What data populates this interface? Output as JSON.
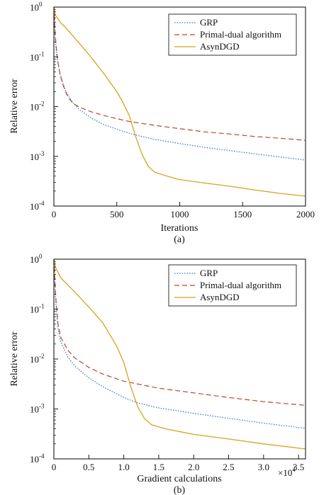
{
  "chart_data": [
    {
      "type": "line",
      "panel_label": "(a)",
      "xlabel": "Iterations",
      "ylabel": "Relative error",
      "xlim": [
        0,
        2000
      ],
      "ylim": [
        0.0001,
        1
      ],
      "yscale": "log",
      "x_ticks": [
        0,
        500,
        1000,
        1500,
        2000
      ],
      "x_tick_labels": [
        "0",
        "500",
        "1000",
        "1500",
        "2000"
      ],
      "x_multiplier": "",
      "y_tick_labels": [
        {
          "value": 1,
          "base": "10",
          "exp": "0"
        },
        {
          "value": 0.1,
          "base": "10",
          "exp": "-1"
        },
        {
          "value": 0.01,
          "base": "10",
          "exp": "-2"
        },
        {
          "value": 0.001,
          "base": "10",
          "exp": "-3"
        },
        {
          "value": 0.0001,
          "base": "10",
          "exp": "-4"
        }
      ],
      "legend_position": "top-right",
      "series": [
        {
          "name": "GRP",
          "color": "#2e6fd0",
          "style": "dotted",
          "points": [
            [
              0,
              1.0
            ],
            [
              5,
              0.5
            ],
            [
              10,
              0.25
            ],
            [
              20,
              0.12
            ],
            [
              30,
              0.08
            ],
            [
              50,
              0.045
            ],
            [
              75,
              0.028
            ],
            [
              100,
              0.019
            ],
            [
              150,
              0.012
            ],
            [
              200,
              0.0088
            ],
            [
              300,
              0.0058
            ],
            [
              400,
              0.0043
            ],
            [
              500,
              0.0035
            ],
            [
              600,
              0.0029
            ],
            [
              700,
              0.0025
            ],
            [
              800,
              0.0022
            ],
            [
              1000,
              0.0018
            ],
            [
              1200,
              0.00151
            ],
            [
              1400,
              0.0013
            ],
            [
              1600,
              0.00112
            ],
            [
              1800,
              0.00097
            ],
            [
              2000,
              0.00084
            ]
          ]
        },
        {
          "name": "Primal-dual algorithm",
          "color": "#c0462a",
          "style": "dashed",
          "points": [
            [
              0,
              1.0
            ],
            [
              5,
              0.5
            ],
            [
              10,
              0.3
            ],
            [
              20,
              0.15
            ],
            [
              30,
              0.085
            ],
            [
              50,
              0.043
            ],
            [
              75,
              0.026
            ],
            [
              100,
              0.018
            ],
            [
              125,
              0.014
            ],
            [
              150,
              0.0118
            ],
            [
              200,
              0.0098
            ],
            [
              300,
              0.0078
            ],
            [
              400,
              0.0066
            ],
            [
              500,
              0.0057
            ],
            [
              600,
              0.005
            ],
            [
              800,
              0.0042
            ],
            [
              1000,
              0.0036
            ],
            [
              1200,
              0.0031
            ],
            [
              1400,
              0.0028
            ],
            [
              1600,
              0.0025
            ],
            [
              1800,
              0.0023
            ],
            [
              2000,
              0.0021
            ]
          ]
        },
        {
          "name": "AsynDGD",
          "color": "#d9a21b",
          "style": "solid",
          "points": [
            [
              0,
              1.0
            ],
            [
              10,
              0.7
            ],
            [
              50,
              0.5
            ],
            [
              100,
              0.37
            ],
            [
              200,
              0.19
            ],
            [
              300,
              0.095
            ],
            [
              400,
              0.045
            ],
            [
              500,
              0.02
            ],
            [
              550,
              0.012
            ],
            [
              600,
              0.0065
            ],
            [
              650,
              0.0025
            ],
            [
              700,
              0.0011
            ],
            [
              750,
              0.00063
            ],
            [
              800,
              0.00048
            ],
            [
              900,
              0.0004
            ],
            [
              1000,
              0.00034
            ],
            [
              1200,
              0.00029
            ],
            [
              1400,
              0.00025
            ],
            [
              1600,
              0.00021
            ],
            [
              1800,
              0.00018
            ],
            [
              2000,
              0.000158
            ]
          ]
        }
      ]
    },
    {
      "type": "line",
      "panel_label": "(b)",
      "xlabel": "Gradient calculations",
      "ylabel": "Relative error",
      "xlim": [
        0,
        3.6
      ],
      "ylim": [
        0.0001,
        1
      ],
      "yscale": "log",
      "x_ticks": [
        0,
        0.5,
        1,
        1.5,
        2,
        2.5,
        3,
        3.5
      ],
      "x_tick_labels": [
        "0",
        "0.5",
        "1.0",
        "1.5",
        "2.0",
        "2.5",
        "3.0",
        "3.5"
      ],
      "x_multiplier": {
        "base": "×10",
        "exp": "4"
      },
      "y_tick_labels": [
        {
          "value": 1,
          "base": "10",
          "exp": "0"
        },
        {
          "value": 0.1,
          "base": "10",
          "exp": "-1"
        },
        {
          "value": 0.01,
          "base": "10",
          "exp": "-2"
        },
        {
          "value": 0.001,
          "base": "10",
          "exp": "-3"
        },
        {
          "value": 0.0001,
          "base": "10",
          "exp": "-4"
        }
      ],
      "legend_position": "top-right",
      "series": [
        {
          "name": "GRP",
          "color": "#2e6fd0",
          "style": "dotted",
          "points": [
            [
              0,
              1.0
            ],
            [
              0.01,
              0.4
            ],
            [
              0.03,
              0.12
            ],
            [
              0.06,
              0.04
            ],
            [
              0.1,
              0.022
            ],
            [
              0.2,
              0.011
            ],
            [
              0.3,
              0.0072
            ],
            [
              0.5,
              0.0042
            ],
            [
              0.7,
              0.0028
            ],
            [
              1.0,
              0.0017
            ],
            [
              1.2,
              0.00132
            ],
            [
              1.5,
              0.00105
            ],
            [
              2.0,
              0.00082
            ],
            [
              2.5,
              0.00065
            ],
            [
              3.0,
              0.00052
            ],
            [
              3.6,
              0.00041
            ]
          ]
        },
        {
          "name": "Primal-dual algorithm",
          "color": "#c0462a",
          "style": "dashed",
          "points": [
            [
              0,
              1.0
            ],
            [
              0.01,
              0.5
            ],
            [
              0.03,
              0.15
            ],
            [
              0.06,
              0.05
            ],
            [
              0.1,
              0.027
            ],
            [
              0.2,
              0.015
            ],
            [
              0.3,
              0.0105
            ],
            [
              0.5,
              0.0068
            ],
            [
              0.7,
              0.005
            ],
            [
              1.0,
              0.0036
            ],
            [
              1.5,
              0.0026
            ],
            [
              2.0,
              0.0021
            ],
            [
              2.5,
              0.0017
            ],
            [
              3.0,
              0.0014
            ],
            [
              3.6,
              0.00118
            ]
          ]
        },
        {
          "name": "AsynDGD",
          "color": "#d9a21b",
          "style": "solid",
          "points": [
            [
              0,
              1.0
            ],
            [
              0.02,
              0.7
            ],
            [
              0.1,
              0.42
            ],
            [
              0.3,
              0.22
            ],
            [
              0.5,
              0.11
            ],
            [
              0.7,
              0.053
            ],
            [
              0.9,
              0.018
            ],
            [
              1.0,
              0.0085
            ],
            [
              1.1,
              0.0028
            ],
            [
              1.2,
              0.0011
            ],
            [
              1.3,
              0.00063
            ],
            [
              1.4,
              0.00048
            ],
            [
              1.6,
              0.0004
            ],
            [
              2.0,
              0.00031
            ],
            [
              2.5,
              0.00025
            ],
            [
              3.0,
              0.0002
            ],
            [
              3.6,
              0.000158
            ]
          ]
        }
      ]
    }
  ]
}
